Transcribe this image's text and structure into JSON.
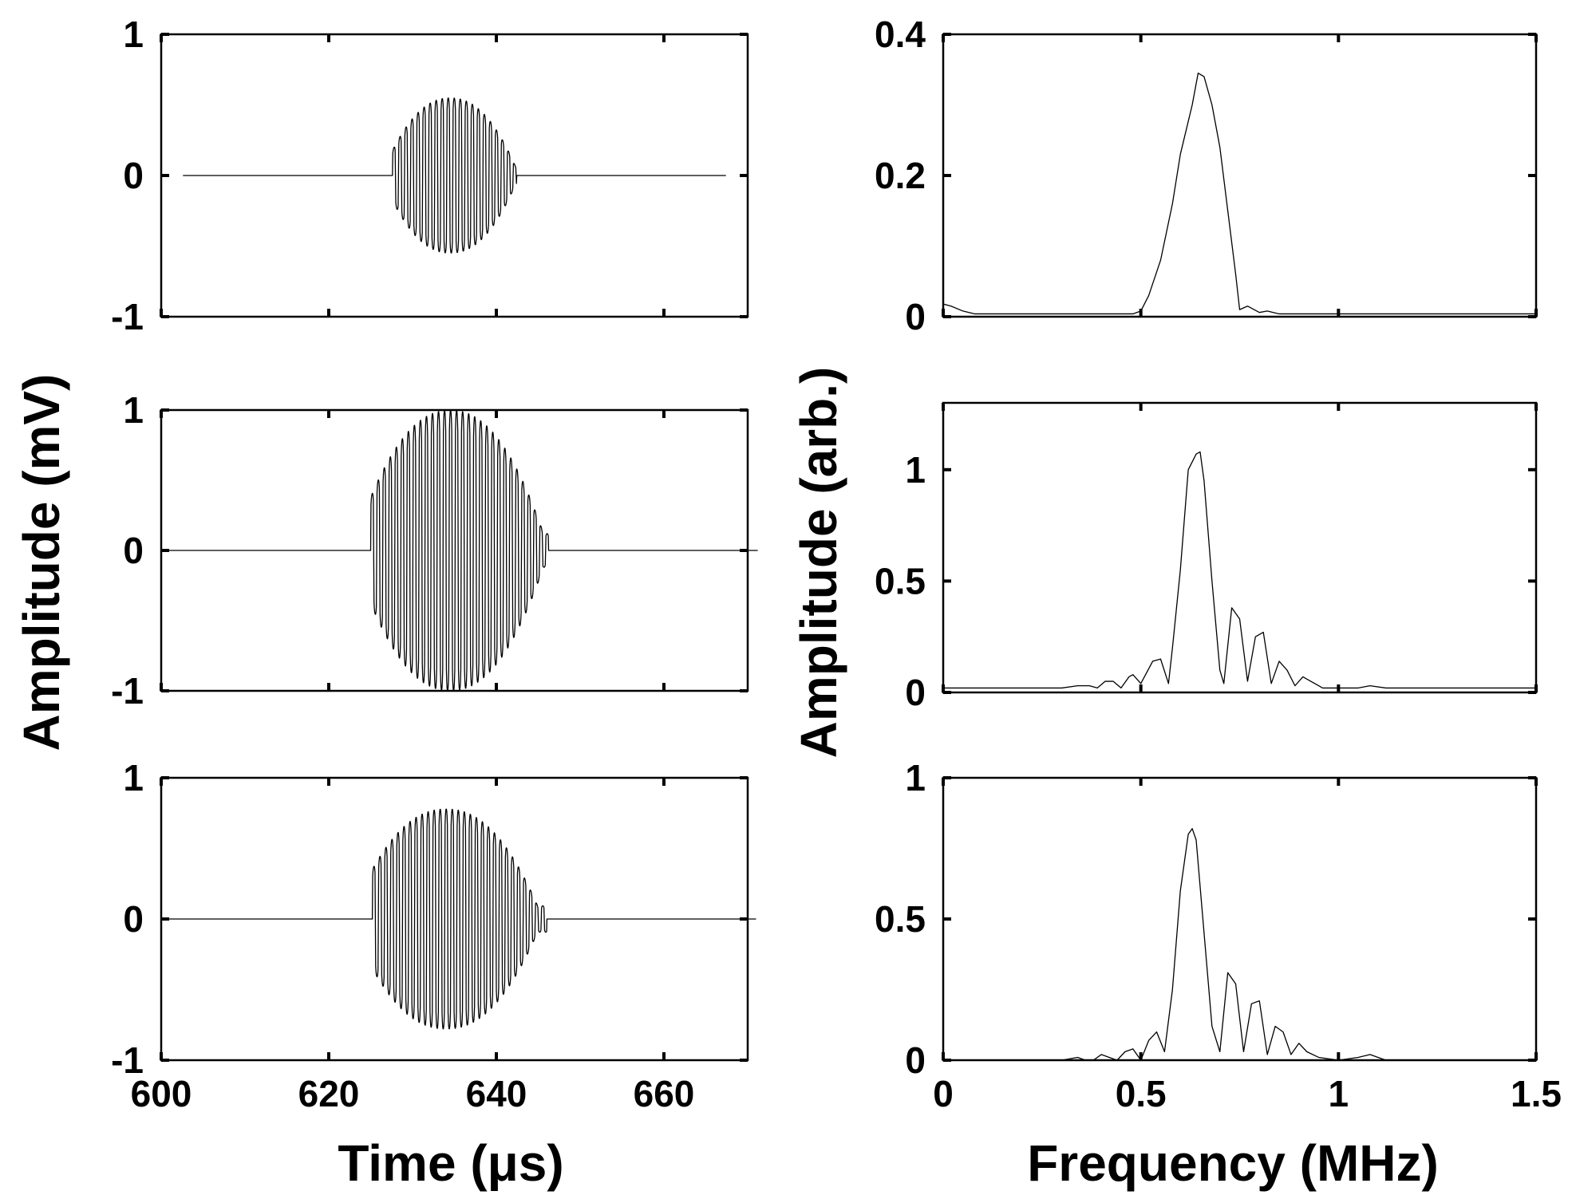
{
  "figure": {
    "left_ylabel": "Amplitude (mV)",
    "left_xlabel": "Time (μs)",
    "right_ylabel": "Amplitude (arb.)",
    "right_xlabel": "Frequency (MHz)"
  },
  "chart_data": [
    {
      "type": "line",
      "panel": "time-top",
      "xlim": [
        600,
        670
      ],
      "ylim": [
        -1,
        1
      ],
      "yticks": [
        {
          "v": -1,
          "t": "-1"
        },
        {
          "v": 0,
          "t": "0"
        },
        {
          "v": 1,
          "t": "1"
        }
      ],
      "xticks": [
        600,
        620,
        640,
        660
      ],
      "xtick_labels": [],
      "ylabel": "",
      "xlabel": "",
      "series": [
        {
          "kind": "burst",
          "start": 627.6,
          "end": 642.4,
          "center": 634.5,
          "peak": 0.55,
          "period": 0.72
        }
      ]
    },
    {
      "type": "line",
      "panel": "time-middle",
      "xlim": [
        600,
        670
      ],
      "ylim": [
        -1,
        1
      ],
      "yticks": [
        {
          "v": -1,
          "t": "-1"
        },
        {
          "v": 0,
          "t": "0"
        },
        {
          "v": 1,
          "t": "1"
        }
      ],
      "xticks": [
        600,
        620,
        640,
        660
      ],
      "xtick_labels": [],
      "ylabel": "",
      "xlabel": "",
      "series": [
        {
          "kind": "burst",
          "start": 625.0,
          "end": 646.2,
          "center": 634.5,
          "peak": 1.0,
          "period": 0.72
        }
      ]
    },
    {
      "type": "line",
      "panel": "time-bottom",
      "xlim": [
        600,
        670
      ],
      "ylim": [
        -1,
        1
      ],
      "yticks": [
        {
          "v": -1,
          "t": "-1"
        },
        {
          "v": 0,
          "t": "0"
        },
        {
          "v": 1,
          "t": "1"
        }
      ],
      "xticks": [
        600,
        620,
        640,
        660
      ],
      "xtick_labels": [
        "600",
        "620",
        "640",
        "660"
      ],
      "ylabel": "",
      "xlabel": "",
      "series": [
        {
          "kind": "burst",
          "start": 625.2,
          "end": 646.0,
          "center": 634.0,
          "peak": 0.78,
          "period": 0.72
        }
      ]
    },
    {
      "type": "line",
      "panel": "freq-top",
      "xlim": [
        0,
        1.5
      ],
      "ylim": [
        0,
        0.4
      ],
      "yticks": [
        {
          "v": 0,
          "t": "0"
        },
        {
          "v": 0.2,
          "t": "0.2"
        },
        {
          "v": 0.4,
          "t": "0.4"
        }
      ],
      "xticks": [
        0,
        0.5,
        1,
        1.5
      ],
      "xtick_labels": [],
      "ylabel": "",
      "xlabel": "",
      "series": [
        {
          "x": [
            0,
            0.02,
            0.05,
            0.08,
            0.2,
            0.4,
            0.48,
            0.5,
            0.52,
            0.55,
            0.58,
            0.6,
            0.63,
            0.645,
            0.66,
            0.68,
            0.7,
            0.72,
            0.74,
            0.75,
            0.77,
            0.8,
            0.82,
            0.85,
            1.0,
            1.2,
            1.5
          ],
          "y": [
            0.018,
            0.015,
            0.008,
            0.004,
            0.004,
            0.004,
            0.004,
            0.008,
            0.03,
            0.08,
            0.16,
            0.23,
            0.3,
            0.345,
            0.34,
            0.3,
            0.24,
            0.15,
            0.06,
            0.01,
            0.015,
            0.006,
            0.008,
            0.004,
            0.004,
            0.004,
            0.004
          ]
        }
      ]
    },
    {
      "type": "line",
      "panel": "freq-middle",
      "xlim": [
        0,
        1.5
      ],
      "ylim": [
        0,
        1.3
      ],
      "yticks": [
        {
          "v": 0,
          "t": "0"
        },
        {
          "v": 0.5,
          "t": "0.5"
        },
        {
          "v": 1,
          "t": "1"
        }
      ],
      "xticks": [
        0,
        0.5,
        1,
        1.5
      ],
      "xtick_labels": [],
      "ylabel": "",
      "xlabel": "",
      "series": [
        {
          "x": [
            0,
            0.3,
            0.34,
            0.37,
            0.39,
            0.41,
            0.43,
            0.45,
            0.47,
            0.48,
            0.5,
            0.53,
            0.55,
            0.57,
            0.58,
            0.6,
            0.62,
            0.64,
            0.65,
            0.66,
            0.68,
            0.7,
            0.71,
            0.73,
            0.75,
            0.77,
            0.79,
            0.81,
            0.83,
            0.85,
            0.87,
            0.89,
            0.91,
            0.93,
            0.96,
            1.0,
            1.05,
            1.08,
            1.12,
            1.15,
            1.5
          ],
          "y": [
            0.02,
            0.02,
            0.03,
            0.03,
            0.02,
            0.05,
            0.05,
            0.02,
            0.07,
            0.08,
            0.04,
            0.14,
            0.15,
            0.04,
            0.2,
            0.55,
            1.0,
            1.07,
            1.08,
            0.95,
            0.5,
            0.1,
            0.04,
            0.38,
            0.33,
            0.05,
            0.25,
            0.27,
            0.04,
            0.14,
            0.1,
            0.03,
            0.07,
            0.05,
            0.02,
            0.02,
            0.02,
            0.03,
            0.02,
            0.02,
            0.02
          ]
        }
      ]
    },
    {
      "type": "line",
      "panel": "freq-bottom",
      "xlim": [
        0,
        1.5
      ],
      "ylim": [
        0,
        1
      ],
      "yticks": [
        {
          "v": 0,
          "t": "0"
        },
        {
          "v": 0.5,
          "t": "0.5"
        },
        {
          "v": 1,
          "t": "1"
        }
      ],
      "xticks": [
        0,
        0.5,
        1,
        1.5
      ],
      "xtick_labels": [
        "0",
        "0.5",
        "1",
        "1.5"
      ],
      "ylabel": "",
      "xlabel": "",
      "series": [
        {
          "x": [
            0,
            0.3,
            0.34,
            0.36,
            0.38,
            0.4,
            0.42,
            0.44,
            0.46,
            0.48,
            0.5,
            0.52,
            0.54,
            0.56,
            0.58,
            0.6,
            0.62,
            0.63,
            0.64,
            0.66,
            0.68,
            0.7,
            0.72,
            0.74,
            0.76,
            0.78,
            0.8,
            0.82,
            0.84,
            0.86,
            0.88,
            0.9,
            0.92,
            0.95,
            1.0,
            1.05,
            1.08,
            1.1,
            1.12,
            1.5
          ],
          "y": [
            0.0,
            0.0,
            0.01,
            0.0,
            0.0,
            0.02,
            0.01,
            0.0,
            0.03,
            0.04,
            0.0,
            0.07,
            0.1,
            0.03,
            0.25,
            0.6,
            0.8,
            0.82,
            0.78,
            0.45,
            0.12,
            0.03,
            0.31,
            0.27,
            0.03,
            0.2,
            0.21,
            0.02,
            0.12,
            0.1,
            0.02,
            0.06,
            0.03,
            0.01,
            0.0,
            0.01,
            0.02,
            0.01,
            0.0,
            0.0
          ]
        }
      ]
    }
  ]
}
